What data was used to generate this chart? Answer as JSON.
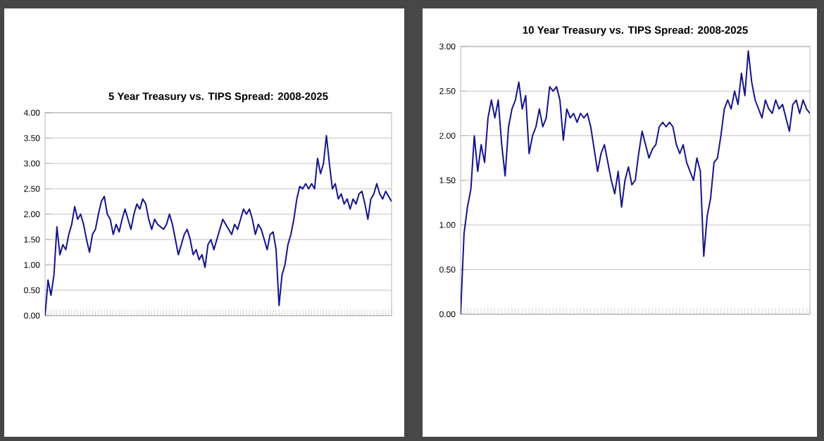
{
  "chart_data": [
    {
      "type": "line",
      "title": "5 Year Treasury vs. TIPS Spread: 2008-2025",
      "grid": "y",
      "tick_labels": "y",
      "marker": "none",
      "line_style": "solid",
      "categories": [
        null,
        null,
        null,
        null,
        null,
        null,
        null,
        null,
        null,
        null,
        null,
        null,
        null,
        null,
        null,
        null,
        null,
        null,
        null,
        null,
        null,
        null,
        null,
        null,
        null,
        null,
        null,
        null,
        null,
        null,
        null,
        null,
        null,
        null,
        null,
        null,
        null,
        null,
        null,
        null,
        null,
        null,
        null,
        null,
        null,
        null,
        null,
        null,
        null,
        null,
        null,
        null,
        null,
        null,
        null,
        null,
        null,
        null,
        null,
        null,
        null,
        null,
        null,
        null,
        null,
        null,
        null,
        null,
        null,
        null,
        null,
        null,
        null,
        null,
        null,
        null,
        null,
        null,
        null,
        null,
        null,
        null,
        null,
        null,
        null,
        null,
        null,
        null,
        null,
        null,
        null,
        null,
        null,
        null,
        null,
        null,
        null,
        null,
        null,
        null,
        null,
        null,
        null,
        null,
        null,
        null,
        null,
        null,
        null,
        null,
        null,
        null,
        null,
        null,
        null,
        null,
        null,
        null
      ],
      "ylim": [
        0,
        4
      ],
      "yticks": [
        {
          "value": 0,
          "label": "0.00"
        },
        {
          "value": 0.5,
          "label": "0.50"
        },
        {
          "value": 1,
          "label": "1.00"
        },
        {
          "value": 1.5,
          "label": "1.50"
        },
        {
          "value": 2,
          "label": "2.00"
        },
        {
          "value": 2.5,
          "label": "2.50"
        },
        {
          "value": 3,
          "label": "3.00"
        },
        {
          "value": 3.5,
          "label": "3.50"
        },
        {
          "value": 4,
          "label": "4.00"
        }
      ],
      "series": [
        {
          "color": "#14148c",
          "values": [
            0.0,
            0.7,
            0.4,
            0.8,
            1.75,
            1.2,
            1.4,
            1.3,
            1.6,
            1.8,
            2.15,
            1.9,
            2.0,
            1.8,
            1.5,
            1.25,
            1.6,
            1.7,
            2.0,
            2.25,
            2.35,
            2.0,
            1.9,
            1.6,
            1.8,
            1.65,
            1.9,
            2.1,
            1.9,
            1.7,
            2.0,
            2.2,
            2.1,
            2.3,
            2.2,
            1.9,
            1.7,
            1.9,
            1.8,
            1.75,
            1.7,
            1.8,
            2.0,
            1.8,
            1.5,
            1.2,
            1.4,
            1.6,
            1.7,
            1.5,
            1.2,
            1.3,
            1.1,
            1.2,
            0.95,
            1.4,
            1.5,
            1.3,
            1.5,
            1.7,
            1.9,
            1.8,
            1.7,
            1.6,
            1.8,
            1.7,
            1.9,
            2.1,
            2.0,
            2.1,
            1.9,
            1.6,
            1.8,
            1.7,
            1.5,
            1.3,
            1.6,
            1.65,
            1.3,
            0.2,
            0.8,
            1.0,
            1.4,
            1.6,
            1.9,
            2.3,
            2.55,
            2.5,
            2.6,
            2.5,
            2.6,
            2.5,
            3.1,
            2.8,
            3.0,
            3.55,
            3.0,
            2.5,
            2.6,
            2.3,
            2.4,
            2.2,
            2.3,
            2.1,
            2.3,
            2.2,
            2.4,
            2.45,
            2.2,
            1.9,
            2.3,
            2.4,
            2.6,
            2.4,
            2.3,
            2.45,
            2.35,
            2.25
          ]
        }
      ]
    },
    {
      "type": "line",
      "title": "10 Year Treasury vs. TIPS Spread: 2008-2025",
      "grid": "y",
      "tick_labels": "y",
      "marker": "none",
      "line_style": "solid",
      "categories": [
        null,
        null,
        null,
        null,
        null,
        null,
        null,
        null,
        null,
        null,
        null,
        null,
        null,
        null,
        null,
        null,
        null,
        null,
        null,
        null,
        null,
        null,
        null,
        null,
        null,
        null,
        null,
        null,
        null,
        null,
        null,
        null,
        null,
        null,
        null,
        null,
        null,
        null,
        null,
        null,
        null,
        null,
        null,
        null,
        null,
        null,
        null,
        null,
        null,
        null,
        null,
        null,
        null,
        null,
        null,
        null,
        null,
        null,
        null,
        null,
        null,
        null,
        null,
        null,
        null,
        null,
        null,
        null,
        null,
        null,
        null,
        null,
        null,
        null,
        null,
        null,
        null,
        null,
        null,
        null,
        null,
        null,
        null,
        null,
        null,
        null,
        null,
        null,
        null,
        null,
        null,
        null,
        null,
        null,
        null,
        null,
        null,
        null,
        null,
        null,
        null,
        null,
        null
      ],
      "ylim": [
        0,
        3
      ],
      "yticks": [
        {
          "value": 0,
          "label": "0.00"
        },
        {
          "value": 0.5,
          "label": "0.50"
        },
        {
          "value": 1,
          "label": "1.00"
        },
        {
          "value": 1.5,
          "label": "1.50"
        },
        {
          "value": 2,
          "label": "2.00"
        },
        {
          "value": 2.5,
          "label": "2.50"
        },
        {
          "value": 3,
          "label": "3.00"
        }
      ],
      "series": [
        {
          "color": "#14148c",
          "values": [
            0.0,
            0.9,
            1.2,
            1.4,
            2.0,
            1.6,
            1.9,
            1.7,
            2.2,
            2.4,
            2.2,
            2.4,
            1.9,
            1.55,
            2.1,
            2.3,
            2.4,
            2.6,
            2.3,
            2.45,
            1.8,
            2.0,
            2.1,
            2.3,
            2.1,
            2.2,
            2.55,
            2.5,
            2.55,
            2.4,
            1.95,
            2.3,
            2.2,
            2.25,
            2.15,
            2.25,
            2.2,
            2.25,
            2.1,
            1.85,
            1.6,
            1.8,
            1.9,
            1.7,
            1.5,
            1.35,
            1.6,
            1.2,
            1.5,
            1.65,
            1.45,
            1.5,
            1.8,
            2.05,
            1.9,
            1.75,
            1.85,
            1.9,
            2.1,
            2.15,
            2.1,
            2.15,
            2.1,
            1.9,
            1.8,
            1.9,
            1.7,
            1.6,
            1.5,
            1.75,
            1.6,
            0.65,
            1.1,
            1.3,
            1.7,
            1.75,
            2.0,
            2.3,
            2.4,
            2.3,
            2.5,
            2.35,
            2.7,
            2.45,
            2.95,
            2.6,
            2.4,
            2.3,
            2.2,
            2.4,
            2.3,
            2.25,
            2.4,
            2.3,
            2.35,
            2.2,
            2.05,
            2.35,
            2.4,
            2.25,
            2.4,
            2.3,
            2.25
          ]
        }
      ]
    }
  ]
}
